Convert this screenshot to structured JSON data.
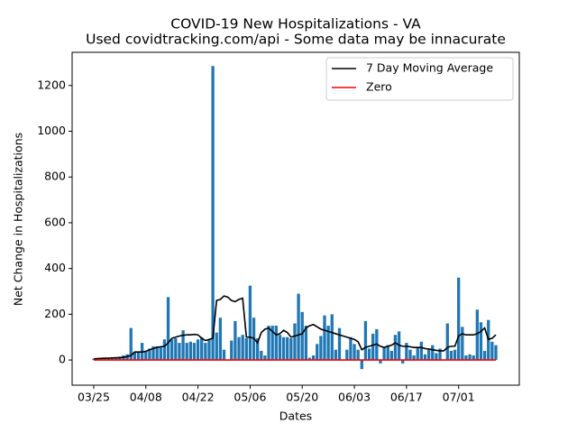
{
  "chart_data": {
    "type": "bar",
    "title": "COVID-19 New Hospitalizations - VA",
    "subtitle": "Used covidtracking.com/api - Some data may be innacurate",
    "xlabel": "Dates",
    "ylabel": "Net Change in Hospitalizations",
    "categories": [
      "03/25",
      null,
      null,
      null,
      null,
      null,
      null,
      null,
      null,
      null,
      null,
      null,
      null,
      null,
      "04/08",
      null,
      null,
      null,
      null,
      null,
      null,
      null,
      null,
      null,
      null,
      null,
      null,
      null,
      "04/22",
      null,
      null,
      null,
      null,
      null,
      null,
      null,
      null,
      null,
      null,
      null,
      null,
      null,
      "05/06",
      null,
      null,
      null,
      null,
      null,
      null,
      null,
      null,
      null,
      null,
      null,
      null,
      null,
      "05/20",
      null,
      null,
      null,
      null,
      null,
      null,
      null,
      null,
      null,
      null,
      null,
      null,
      null,
      "06/03",
      null,
      null,
      null,
      null,
      null,
      null,
      null,
      null,
      null,
      null,
      null,
      null,
      null,
      "06/17",
      null,
      null,
      null,
      null,
      null,
      null,
      null,
      null,
      null,
      null,
      null,
      null,
      null,
      "07/01",
      null,
      null,
      null,
      null,
      null,
      null,
      null,
      null,
      null,
      null
    ],
    "values": [
      5,
      5,
      8,
      10,
      8,
      12,
      10,
      15,
      20,
      25,
      140,
      35,
      35,
      75,
      40,
      50,
      60,
      60,
      55,
      90,
      275,
      90,
      95,
      75,
      130,
      75,
      80,
      75,
      90,
      100,
      75,
      90,
      1285,
      120,
      185,
      45,
      0,
      85,
      170,
      100,
      110,
      95,
      325,
      185,
      95,
      40,
      20,
      150,
      150,
      150,
      110,
      100,
      100,
      95,
      160,
      290,
      210,
      150,
      10,
      20,
      70,
      105,
      195,
      150,
      200,
      45,
      140,
      0,
      45,
      100,
      70,
      45,
      -40,
      170,
      50,
      115,
      135,
      -15,
      55,
      65,
      40,
      110,
      125,
      -15,
      75,
      45,
      20,
      55,
      80,
      25,
      45,
      65,
      30,
      50,
      0,
      160,
      40,
      45,
      360,
      145,
      20,
      25,
      20,
      220,
      165,
      40,
      175,
      80,
      65
    ],
    "color": "#1f77b4",
    "lines": [
      {
        "name": "7 Day Moving Average",
        "color": "#000000",
        "values": [
          5,
          6,
          7,
          8,
          8,
          9,
          10,
          10,
          12,
          15,
          20,
          35,
          35,
          35,
          38,
          45,
          50,
          55,
          58,
          60,
          75,
          95,
          100,
          105,
          108,
          110,
          110,
          112,
          110,
          95,
          85,
          90,
          95,
          260,
          265,
          280,
          275,
          260,
          255,
          265,
          270,
          100,
          100,
          95,
          75,
          120,
          135,
          140,
          125,
          110,
          115,
          130,
          120,
          100,
          105,
          110,
          115,
          140,
          150,
          155,
          145,
          135,
          130,
          125,
          120,
          115,
          110,
          105,
          100,
          95,
          90,
          80,
          45,
          55,
          60,
          65,
          70,
          60,
          55,
          60,
          65,
          75,
          65,
          60,
          60,
          58,
          55,
          55,
          55,
          50,
          48,
          45,
          42,
          40,
          40,
          55,
          60,
          60,
          105,
          115,
          110,
          110,
          110,
          115,
          125,
          140,
          90,
          95,
          110
        ]
      },
      {
        "name": "Zero",
        "color": "#ff0000",
        "value": 0
      }
    ],
    "xlim": [
      -5.8,
      114.3
    ],
    "ylim": [
      -110,
      1345
    ],
    "yticks": [
      0,
      200,
      400,
      600,
      800,
      1000,
      1200
    ],
    "legend": "upper right"
  }
}
